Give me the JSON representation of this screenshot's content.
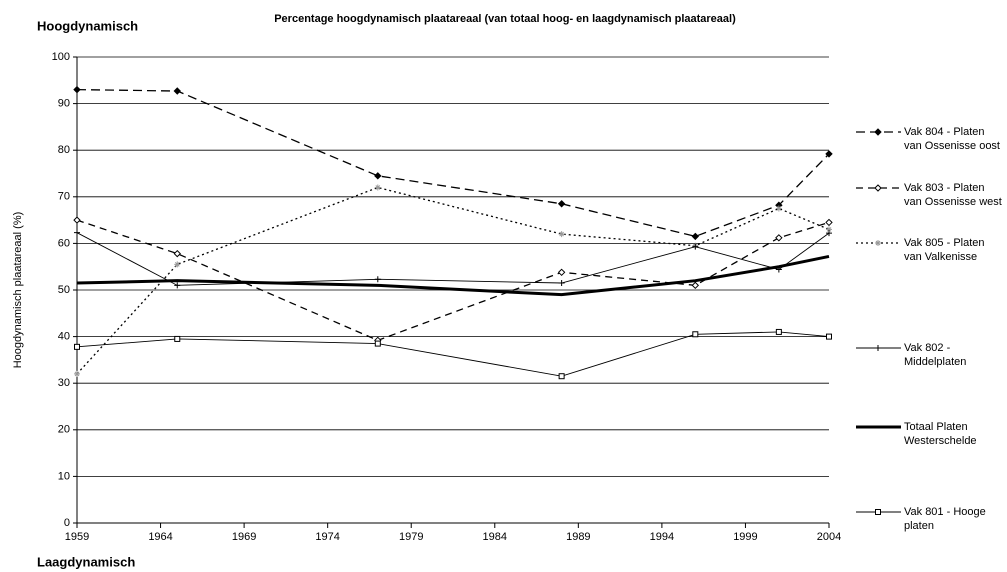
{
  "chart_data": {
    "type": "line",
    "title": "Percentage hoogdynamisch plaatareaal (van totaal hoog- en laagdynamisch plaatareaal)",
    "annotations": [
      "Hoogdynamisch",
      "Laagdynamisch"
    ],
    "y_label": "Hoogdynamisch plaatareaal (%)",
    "x": [
      1959,
      1965,
      1977,
      1988,
      1996,
      2001,
      2004
    ],
    "xlim": [
      1959,
      2004
    ],
    "xticks": [
      1959,
      1964,
      1969,
      1974,
      1979,
      1984,
      1989,
      1994,
      1999,
      2004
    ],
    "ylim": [
      0,
      100
    ],
    "yticks": [
      0,
      10,
      20,
      30,
      40,
      50,
      60,
      70,
      80,
      90,
      100
    ],
    "grid": true,
    "legend": "right",
    "series": [
      {
        "name": "Vak 804 - Platen van Ossenisse oost",
        "color": "#000000",
        "dash": "9,5",
        "width": 1.3,
        "marker": "diamond-filled",
        "values": [
          93,
          92.7,
          74.5,
          68.5,
          61.5,
          68.2,
          79.2
        ]
      },
      {
        "name": "Vak 803 - Platen van Ossenisse west",
        "color": "#000000",
        "dash": "7,5",
        "width": 1.3,
        "marker": "diamond-open",
        "values": [
          65,
          57.8,
          39.2,
          53.8,
          51,
          61.2,
          64.5
        ]
      },
      {
        "name": "Vak 805 - Platen van Valkenisse",
        "color": "#000000",
        "dash": "2,3",
        "width": 1.3,
        "marker": "star",
        "values": [
          32,
          55.5,
          72,
          62,
          59.5,
          67.5,
          63
        ]
      },
      {
        "name": "Vak 802 - Middelplaten",
        "color": "#000000",
        "dash": "",
        "width": 0.9,
        "marker": "plus",
        "values": [
          62.3,
          51,
          52.3,
          51.5,
          59.3,
          54.4,
          62.2
        ]
      },
      {
        "name": "Totaal Platen Westerschelde",
        "color": "#000000",
        "dash": "",
        "width": 3,
        "marker": "none",
        "values": [
          51.5,
          52,
          51,
          49,
          52,
          55,
          57.2
        ]
      },
      {
        "name": "Vak 801 - Hooge platen",
        "color": "#000000",
        "dash": "",
        "width": 0.9,
        "marker": "square-open",
        "values": [
          37.8,
          39.5,
          38.5,
          31.5,
          40.5,
          41,
          40
        ]
      }
    ]
  }
}
